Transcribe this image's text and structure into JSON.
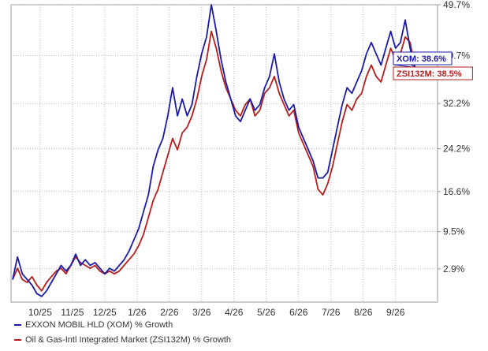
{
  "chart_data": {
    "type": "line",
    "title": "",
    "xlabel": "",
    "ylabel": "",
    "x_ticks": [
      "10/25",
      "11/25",
      "12/25",
      "1/26",
      "2/26",
      "3/26",
      "4/26",
      "5/26",
      "6/26",
      "7/26",
      "8/26",
      "9/26"
    ],
    "y_ticks": [
      "2.9%",
      "9.5%",
      "16.6%",
      "24.2%",
      "32.2%",
      "40.7%",
      "49.7%"
    ],
    "y_tick_values": [
      2.9,
      9.5,
      16.6,
      24.2,
      32.2,
      40.7,
      49.7
    ],
    "ylim": [
      -3,
      49.7
    ],
    "x_unit": "month index (0 = 10/25)",
    "xlim": [
      -0.9,
      12.3
    ],
    "grid": true,
    "legend_position": "bottom-left",
    "series": [
      {
        "name": "EXXON MOBIL HLD (XOM) % Growth",
        "color": "#1a1aa6",
        "last_label": "XOM: 38.6%",
        "points": [
          [
            -0.85,
            1.0
          ],
          [
            -0.7,
            5.0
          ],
          [
            -0.55,
            2.0
          ],
          [
            -0.4,
            1.0
          ],
          [
            -0.25,
            0.0
          ],
          [
            -0.1,
            -1.5
          ],
          [
            0.05,
            -2.0
          ],
          [
            0.2,
            -1.0
          ],
          [
            0.35,
            0.5
          ],
          [
            0.5,
            2.0
          ],
          [
            0.65,
            3.5
          ],
          [
            0.8,
            2.5
          ],
          [
            0.95,
            3.5
          ],
          [
            1.1,
            5.5
          ],
          [
            1.25,
            3.5
          ],
          [
            1.4,
            4.5
          ],
          [
            1.55,
            3.5
          ],
          [
            1.7,
            4.0
          ],
          [
            1.85,
            3.0
          ],
          [
            2.0,
            2.0
          ],
          [
            2.15,
            3.0
          ],
          [
            2.3,
            2.5
          ],
          [
            2.45,
            3.5
          ],
          [
            2.6,
            4.5
          ],
          [
            2.75,
            6.0
          ],
          [
            2.9,
            8.0
          ],
          [
            3.05,
            10.0
          ],
          [
            3.2,
            13.0
          ],
          [
            3.35,
            16.0
          ],
          [
            3.5,
            21.0
          ],
          [
            3.65,
            24.0
          ],
          [
            3.8,
            26.0
          ],
          [
            3.95,
            30.0
          ],
          [
            4.1,
            35.0
          ],
          [
            4.25,
            30.0
          ],
          [
            4.4,
            33.0
          ],
          [
            4.55,
            30.0
          ],
          [
            4.7,
            32.0
          ],
          [
            4.85,
            37.0
          ],
          [
            5.0,
            41.0
          ],
          [
            5.15,
            44.0
          ],
          [
            5.3,
            49.7
          ],
          [
            5.45,
            45.0
          ],
          [
            5.6,
            40.0
          ],
          [
            5.75,
            36.0
          ],
          [
            5.9,
            33.0
          ],
          [
            6.05,
            30.0
          ],
          [
            6.2,
            29.0
          ],
          [
            6.35,
            31.0
          ],
          [
            6.5,
            33.0
          ],
          [
            6.65,
            31.0
          ],
          [
            6.8,
            32.0
          ],
          [
            6.95,
            35.0
          ],
          [
            7.1,
            37.0
          ],
          [
            7.25,
            41.0
          ],
          [
            7.4,
            36.0
          ],
          [
            7.55,
            33.0
          ],
          [
            7.7,
            31.0
          ],
          [
            7.85,
            32.0
          ],
          [
            8.0,
            28.0
          ],
          [
            8.15,
            26.0
          ],
          [
            8.3,
            24.0
          ],
          [
            8.45,
            22.0
          ],
          [
            8.6,
            19.0
          ],
          [
            8.75,
            19.0
          ],
          [
            8.9,
            20.0
          ],
          [
            9.05,
            24.0
          ],
          [
            9.2,
            28.0
          ],
          [
            9.35,
            32.0
          ],
          [
            9.5,
            35.0
          ],
          [
            9.65,
            34.0
          ],
          [
            9.8,
            36.0
          ],
          [
            9.95,
            38.0
          ],
          [
            10.1,
            41.0
          ],
          [
            10.25,
            43.0
          ],
          [
            10.4,
            41.0
          ],
          [
            10.55,
            39.0
          ],
          [
            10.7,
            42.0
          ],
          [
            10.85,
            45.0
          ],
          [
            11.0,
            42.0
          ],
          [
            11.15,
            43.0
          ],
          [
            11.3,
            47.0
          ],
          [
            11.45,
            42.0
          ],
          [
            11.6,
            38.6
          ]
        ]
      },
      {
        "name": "Oil & Gas-Intl Integrated Market (ZSI132M) % Growth",
        "color": "#b81c1c",
        "last_label": "ZSI132M: 38.5%",
        "points": [
          [
            -0.85,
            1.0
          ],
          [
            -0.7,
            3.0
          ],
          [
            -0.55,
            1.0
          ],
          [
            -0.4,
            0.5
          ],
          [
            -0.25,
            1.5
          ],
          [
            -0.1,
            0.0
          ],
          [
            0.05,
            -1.0
          ],
          [
            0.2,
            0.5
          ],
          [
            0.35,
            1.5
          ],
          [
            0.5,
            2.5
          ],
          [
            0.65,
            3.0
          ],
          [
            0.8,
            2.0
          ],
          [
            0.95,
            3.5
          ],
          [
            1.1,
            5.0
          ],
          [
            1.25,
            4.0
          ],
          [
            1.4,
            3.5
          ],
          [
            1.55,
            3.0
          ],
          [
            1.7,
            3.5
          ],
          [
            1.85,
            2.5
          ],
          [
            2.0,
            2.0
          ],
          [
            2.15,
            2.5
          ],
          [
            2.3,
            2.0
          ],
          [
            2.45,
            2.5
          ],
          [
            2.6,
            3.5
          ],
          [
            2.75,
            4.5
          ],
          [
            2.9,
            5.5
          ],
          [
            3.05,
            7.0
          ],
          [
            3.2,
            9.0
          ],
          [
            3.35,
            12.0
          ],
          [
            3.5,
            15.0
          ],
          [
            3.65,
            17.0
          ],
          [
            3.8,
            20.0
          ],
          [
            3.95,
            23.0
          ],
          [
            4.1,
            26.0
          ],
          [
            4.25,
            24.0
          ],
          [
            4.4,
            27.0
          ],
          [
            4.55,
            28.0
          ],
          [
            4.7,
            30.0
          ],
          [
            4.85,
            33.0
          ],
          [
            5.0,
            37.0
          ],
          [
            5.15,
            40.0
          ],
          [
            5.3,
            45.0
          ],
          [
            5.45,
            42.0
          ],
          [
            5.6,
            38.0
          ],
          [
            5.75,
            35.0
          ],
          [
            5.9,
            33.0
          ],
          [
            6.05,
            31.0
          ],
          [
            6.2,
            30.0
          ],
          [
            6.35,
            32.0
          ],
          [
            6.5,
            33.0
          ],
          [
            6.65,
            30.0
          ],
          [
            6.8,
            31.0
          ],
          [
            6.95,
            34.0
          ],
          [
            7.1,
            35.0
          ],
          [
            7.25,
            37.0
          ],
          [
            7.4,
            34.0
          ],
          [
            7.55,
            32.0
          ],
          [
            7.7,
            30.0
          ],
          [
            7.85,
            31.0
          ],
          [
            8.0,
            27.0
          ],
          [
            8.15,
            25.0
          ],
          [
            8.3,
            23.0
          ],
          [
            8.45,
            21.0
          ],
          [
            8.6,
            17.0
          ],
          [
            8.75,
            16.0
          ],
          [
            8.9,
            18.0
          ],
          [
            9.05,
            21.0
          ],
          [
            9.2,
            25.0
          ],
          [
            9.35,
            29.0
          ],
          [
            9.5,
            32.0
          ],
          [
            9.65,
            31.0
          ],
          [
            9.8,
            33.0
          ],
          [
            9.95,
            34.0
          ],
          [
            10.1,
            37.0
          ],
          [
            10.25,
            39.0
          ],
          [
            10.4,
            37.0
          ],
          [
            10.55,
            36.0
          ],
          [
            10.7,
            39.0
          ],
          [
            10.85,
            42.0
          ],
          [
            11.0,
            40.0
          ],
          [
            11.15,
            41.0
          ],
          [
            11.3,
            44.0
          ],
          [
            11.45,
            43.0
          ],
          [
            11.6,
            38.5
          ]
        ]
      }
    ]
  },
  "legend": {
    "items": [
      {
        "label": "EXXON MOBIL HLD (XOM) % Growth",
        "color": "#1a1aa6"
      },
      {
        "label": "Oil & Gas-Intl Integrated Market (ZSI132M) % Growth",
        "color": "#b81c1c"
      }
    ]
  }
}
